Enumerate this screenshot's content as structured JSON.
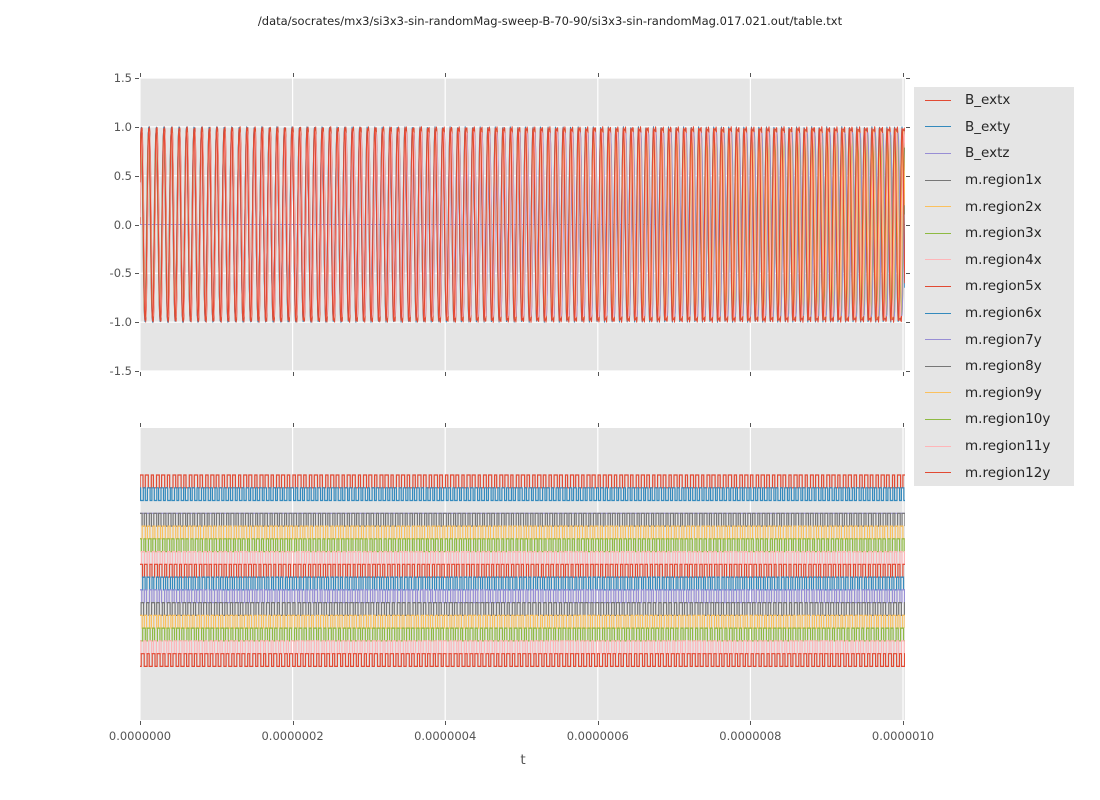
{
  "figure": {
    "title": "/data/socrates/mx3/si3x3-sin-randomMag-sweep-B-70-90/si3x3-sin-randomMag.017.021.out/table.txt",
    "panel_background": "#e5e5e5",
    "grid_color": "#ffffff",
    "tick_color": "#555555",
    "text_color": "#262626"
  },
  "xaxis": {
    "label": "t",
    "tick_labels": [
      "0.0000000",
      "0.0000002",
      "0.0000004",
      "0.0000006",
      "0.0000008",
      "0.0000010"
    ]
  },
  "legend": {
    "position": "right",
    "entries": [
      {
        "label": "B_extx",
        "color": "#e24a33"
      },
      {
        "label": "B_exty",
        "color": "#348abd"
      },
      {
        "label": "B_extz",
        "color": "#988ed5"
      },
      {
        "label": "m.region1x",
        "color": "#777777"
      },
      {
        "label": "m.region2x",
        "color": "#fbc15e"
      },
      {
        "label": "m.region3x",
        "color": "#8eba42"
      },
      {
        "label": "m.region4x",
        "color": "#ffb5b8"
      },
      {
        "label": "m.region5x",
        "color": "#e24a33"
      },
      {
        "label": "m.region6x",
        "color": "#348abd"
      },
      {
        "label": "m.region7y",
        "color": "#988ed5"
      },
      {
        "label": "m.region8y",
        "color": "#777777"
      },
      {
        "label": "m.region9y",
        "color": "#fbc15e"
      },
      {
        "label": "m.region10y",
        "color": "#8eba42"
      },
      {
        "label": "m.region11y",
        "color": "#ffb5b8"
      },
      {
        "label": "m.region12y",
        "color": "#e24a33"
      }
    ]
  },
  "chart_data": {
    "type": "line",
    "title": "/data/socrates/mx3/si3x3-sin-randomMag-sweep-B-70-90/si3x3-sin-randomMag.017.021.out/table.txt",
    "xlabel": "t",
    "x_range_seconds": [
      0.0,
      1e-06
    ],
    "x_tick_values": [
      0.0,
      2e-07,
      4e-07,
      6e-07,
      8e-07,
      1e-06
    ],
    "grid": "on-white-over-gray",
    "legend_position": "right",
    "panels": [
      {
        "id": "top",
        "ylim": [
          -1.5,
          1.5
        ],
        "ytick_labels": [
          "1.5",
          "1.0",
          "0.5",
          "0.0",
          "-0.5",
          "-1.0",
          "-1.5"
        ],
        "ytick_values": [
          1.5,
          1.0,
          0.5,
          0.0,
          -0.5,
          -1.0,
          -1.5
        ],
        "description": "15 overlapping high-frequency sinusoids (~101 cycles over 1e-6 s, f~1e8 Hz) oscillating between -1 and +1; B_extz is approximately constant at 0",
        "series": [
          {
            "name": "B_extx",
            "color": "#e24a33",
            "waveform": "sine",
            "amplitude": 1.0,
            "cycles": 101.0,
            "phase": 0.0
          },
          {
            "name": "B_exty",
            "color": "#348abd",
            "waveform": "sine",
            "amplitude": 1.0,
            "cycles": 101.3,
            "phase": 0.5
          },
          {
            "name": "B_extz",
            "color": "#988ed5",
            "waveform": "constant",
            "value": 0.0
          },
          {
            "name": "m.region1x",
            "color": "#777777",
            "waveform": "sine",
            "amplitude": 0.97,
            "cycles": 101.1,
            "phase": 0.18
          },
          {
            "name": "m.region2x",
            "color": "#fbc15e",
            "waveform": "sine",
            "amplitude": 0.93,
            "cycles": 100.8,
            "phase": 0.65
          },
          {
            "name": "m.region3x",
            "color": "#8eba42",
            "waveform": "sine",
            "amplitude": 0.96,
            "cycles": 101.2,
            "phase": 0.32
          },
          {
            "name": "m.region4x",
            "color": "#ffb5b8",
            "waveform": "sine",
            "amplitude": 0.92,
            "cycles": 100.9,
            "phase": 0.85
          },
          {
            "name": "m.region5x",
            "color": "#e24a33",
            "waveform": "sine",
            "amplitude": 0.98,
            "cycles": 101.15,
            "phase": 0.12
          },
          {
            "name": "m.region6x",
            "color": "#348abd",
            "waveform": "sine",
            "amplitude": 0.97,
            "cycles": 101.25,
            "phase": 0.55
          },
          {
            "name": "m.region7y",
            "color": "#988ed5",
            "waveform": "sine",
            "amplitude": 0.94,
            "cycles": 100.85,
            "phase": 0.4
          },
          {
            "name": "m.region8y",
            "color": "#777777",
            "waveform": "sine",
            "amplitude": 0.95,
            "cycles": 101.05,
            "phase": 0.75
          },
          {
            "name": "m.region9y",
            "color": "#fbc15e",
            "waveform": "sine",
            "amplitude": 0.96,
            "cycles": 101.2,
            "phase": 0.22
          },
          {
            "name": "m.region10y",
            "color": "#8eba42",
            "waveform": "sine",
            "amplitude": 0.93,
            "cycles": 100.95,
            "phase": 0.6
          },
          {
            "name": "m.region11y",
            "color": "#ffb5b8",
            "waveform": "sine",
            "amplitude": 0.95,
            "cycles": 101.1,
            "phase": 0.08
          },
          {
            "name": "m.region12y",
            "color": "#e24a33",
            "waveform": "sine",
            "amplitude": 0.99,
            "cycles": 101.3,
            "phase": 0.45
          }
        ]
      },
      {
        "id": "bottom",
        "ytick_labels": [],
        "description": "same 15 series drawn as dense square waves stacked in 15 vertical slots (slot 0 at top); each toggles between the top and bottom of its slot; B_extz stays constant at the bottom level of slot 2",
        "slot_top_frac": 0.161,
        "slot_step_frac": 0.0437,
        "series": [
          {
            "name": "B_extx",
            "color": "#e24a33",
            "waveform": "square",
            "slot": 0,
            "cycles": 140,
            "phase": 0.0
          },
          {
            "name": "B_exty",
            "color": "#348abd",
            "waveform": "square",
            "slot": 1,
            "cycles": 170,
            "phase": 2.1
          },
          {
            "name": "B_extz",
            "color": "#988ed5",
            "waveform": "constant-low",
            "slot": 2
          },
          {
            "name": "m.region1x",
            "color": "#777777",
            "waveform": "square",
            "slot": 3,
            "cycles": 158,
            "phase": 0.8
          },
          {
            "name": "m.region2x",
            "color": "#fbc15e",
            "waveform": "square",
            "slot": 4,
            "cycles": 150,
            "phase": 3.4
          },
          {
            "name": "m.region3x",
            "color": "#8eba42",
            "waveform": "square",
            "slot": 5,
            "cycles": 162,
            "phase": 1.5
          },
          {
            "name": "m.region4x",
            "color": "#ffb5b8",
            "waveform": "square",
            "slot": 6,
            "cycles": 148,
            "phase": 4.2
          },
          {
            "name": "m.region5x",
            "color": "#e24a33",
            "waveform": "square",
            "slot": 7,
            "cycles": 154,
            "phase": 0.4
          },
          {
            "name": "m.region6x",
            "color": "#348abd",
            "waveform": "square",
            "slot": 8,
            "cycles": 166,
            "phase": 2.8
          },
          {
            "name": "m.region7y",
            "color": "#988ed5",
            "waveform": "square",
            "slot": 9,
            "cycles": 152,
            "phase": 1.1
          },
          {
            "name": "m.region8y",
            "color": "#777777",
            "waveform": "square",
            "slot": 10,
            "cycles": 146,
            "phase": 5.0
          },
          {
            "name": "m.region9y",
            "color": "#fbc15e",
            "waveform": "square",
            "slot": 11,
            "cycles": 160,
            "phase": 0.6
          },
          {
            "name": "m.region10y",
            "color": "#8eba42",
            "waveform": "square",
            "slot": 12,
            "cycles": 156,
            "phase": 3.0
          },
          {
            "name": "m.region11y",
            "color": "#ffb5b8",
            "waveform": "square",
            "slot": 13,
            "cycles": 150,
            "phase": 1.9
          },
          {
            "name": "m.region12y",
            "color": "#e24a33",
            "waveform": "square",
            "slot": 14,
            "cycles": 144,
            "phase": 4.6
          }
        ]
      }
    ]
  }
}
